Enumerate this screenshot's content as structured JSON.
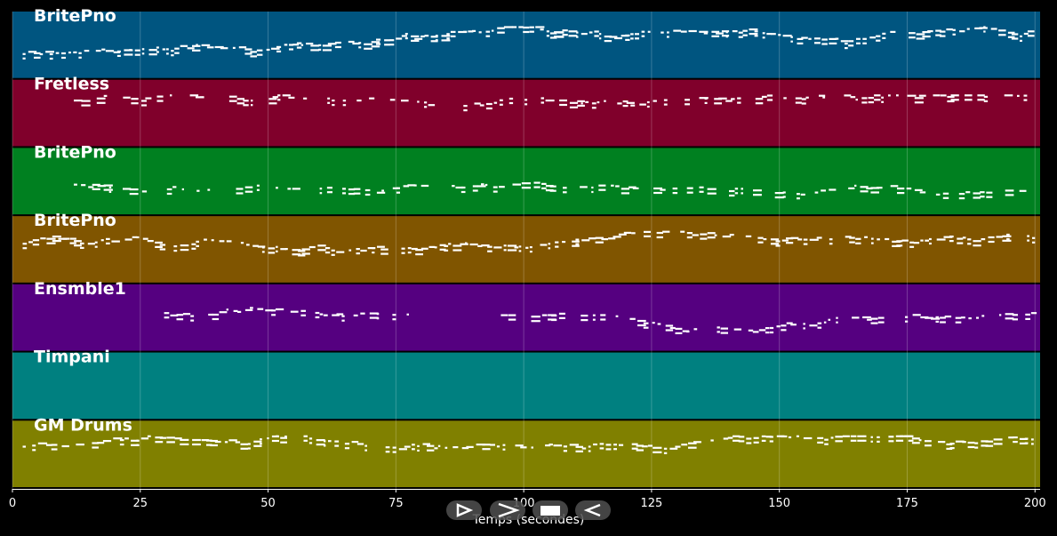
{
  "tracks": [
    {
      "name": "BritePno",
      "color": "#005580",
      "density": 0.95,
      "pitch_center": 0.62
    },
    {
      "name": "Fretless",
      "color": "#80002b",
      "density": 0.55,
      "pitch_center": 0.28
    },
    {
      "name": "BritePno",
      "color": "#008020",
      "density": 0.55,
      "pitch_center": 0.55
    },
    {
      "name": "BritePno",
      "color": "#805500",
      "density": 0.85,
      "pitch_center": 0.4
    },
    {
      "name": "Ensmble1",
      "color": "#550080",
      "density": 0.7,
      "pitch_center": 0.45
    },
    {
      "name": "Timpani",
      "color": "#008080",
      "density": 0.0,
      "pitch_center": 0.5
    },
    {
      "name": "GM Drums",
      "color": "#808000",
      "density": 0.85,
      "pitch_center": 0.35
    }
  ],
  "chart_data": {
    "type": "piano-roll",
    "xlabel": "Temps (secondes)",
    "xlim": [
      0,
      201
    ],
    "x_ticks": [
      0,
      25,
      50,
      75,
      100,
      125,
      150,
      175,
      200
    ],
    "grid": true,
    "series": [
      {
        "name": "BritePno"
      },
      {
        "name": "Fretless"
      },
      {
        "name": "BritePno"
      },
      {
        "name": "BritePno"
      },
      {
        "name": "Ensmble1"
      },
      {
        "name": "Timpani"
      },
      {
        "name": "GM Drums"
      }
    ]
  },
  "controls": [
    {
      "name": "play-from-start-icon"
    },
    {
      "name": "play-icon"
    },
    {
      "name": "stop-icon"
    },
    {
      "name": "rewind-icon"
    }
  ]
}
